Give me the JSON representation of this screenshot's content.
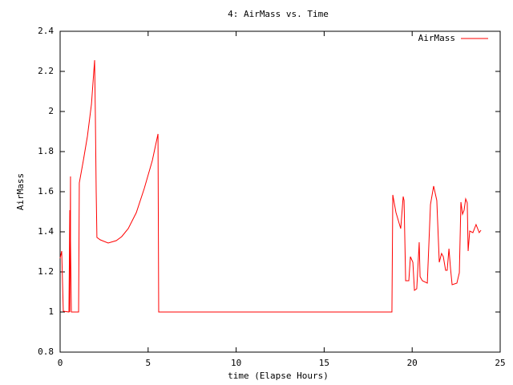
{
  "chart_data": {
    "type": "line",
    "title": "4: AirMass vs. Time",
    "xlabel": "time (Elapse Hours)",
    "ylabel": "AirMass",
    "xlim": [
      0,
      25
    ],
    "ylim": [
      0.8,
      2.4
    ],
    "xticks": [
      0,
      5,
      10,
      15,
      20,
      25
    ],
    "yticks": [
      0.8,
      1,
      1.2,
      1.4,
      1.6,
      1.8,
      2,
      2.2,
      2.4
    ],
    "legend": "top-right",
    "series": [
      {
        "name": "AirMass",
        "color": "#ff0000",
        "x": [
          0,
          0.09,
          0.18,
          0.5,
          0.55,
          0.55,
          0.59,
          0.59,
          0.64,
          1.05,
          1.09,
          1.32,
          1.55,
          1.78,
          1.96,
          2.0,
          2.05,
          2.09,
          2.28,
          2.73,
          3.19,
          3.5,
          3.87,
          4.33,
          4.78,
          5.24,
          5.56,
          5.6,
          18.85,
          18.9,
          19.08,
          19.35,
          19.49,
          19.54,
          19.63,
          19.81,
          19.9,
          20.04,
          20.13,
          20.26,
          20.4,
          20.45,
          20.58,
          20.86,
          21.04,
          21.22,
          21.4,
          21.54,
          21.67,
          21.77,
          21.9,
          21.99,
          22.09,
          22.18,
          22.27,
          22.54,
          22.68,
          22.77,
          22.86,
          22.95,
          23.04,
          23.13,
          23.18,
          23.27,
          23.45,
          23.63,
          23.81,
          23.91
        ],
        "values": [
          1.268,
          1.304,
          1.004,
          1.0,
          1.508,
          1.0,
          1.676,
          1.356,
          1.0,
          1.0,
          1.644,
          1.756,
          1.876,
          2.036,
          2.256,
          1.996,
          1.596,
          1.372,
          1.36,
          1.344,
          1.356,
          1.376,
          1.416,
          1.496,
          1.616,
          1.756,
          1.888,
          1.0,
          1.0,
          1.584,
          1.496,
          1.416,
          1.576,
          1.556,
          1.156,
          1.156,
          1.276,
          1.248,
          1.108,
          1.116,
          1.348,
          1.176,
          1.156,
          1.144,
          1.536,
          1.628,
          1.556,
          1.248,
          1.292,
          1.276,
          1.208,
          1.208,
          1.316,
          1.216,
          1.136,
          1.144,
          1.196,
          1.548,
          1.488,
          1.508,
          1.564,
          1.544,
          1.304,
          1.404,
          1.396,
          1.436,
          1.396,
          1.408
        ]
      }
    ]
  }
}
